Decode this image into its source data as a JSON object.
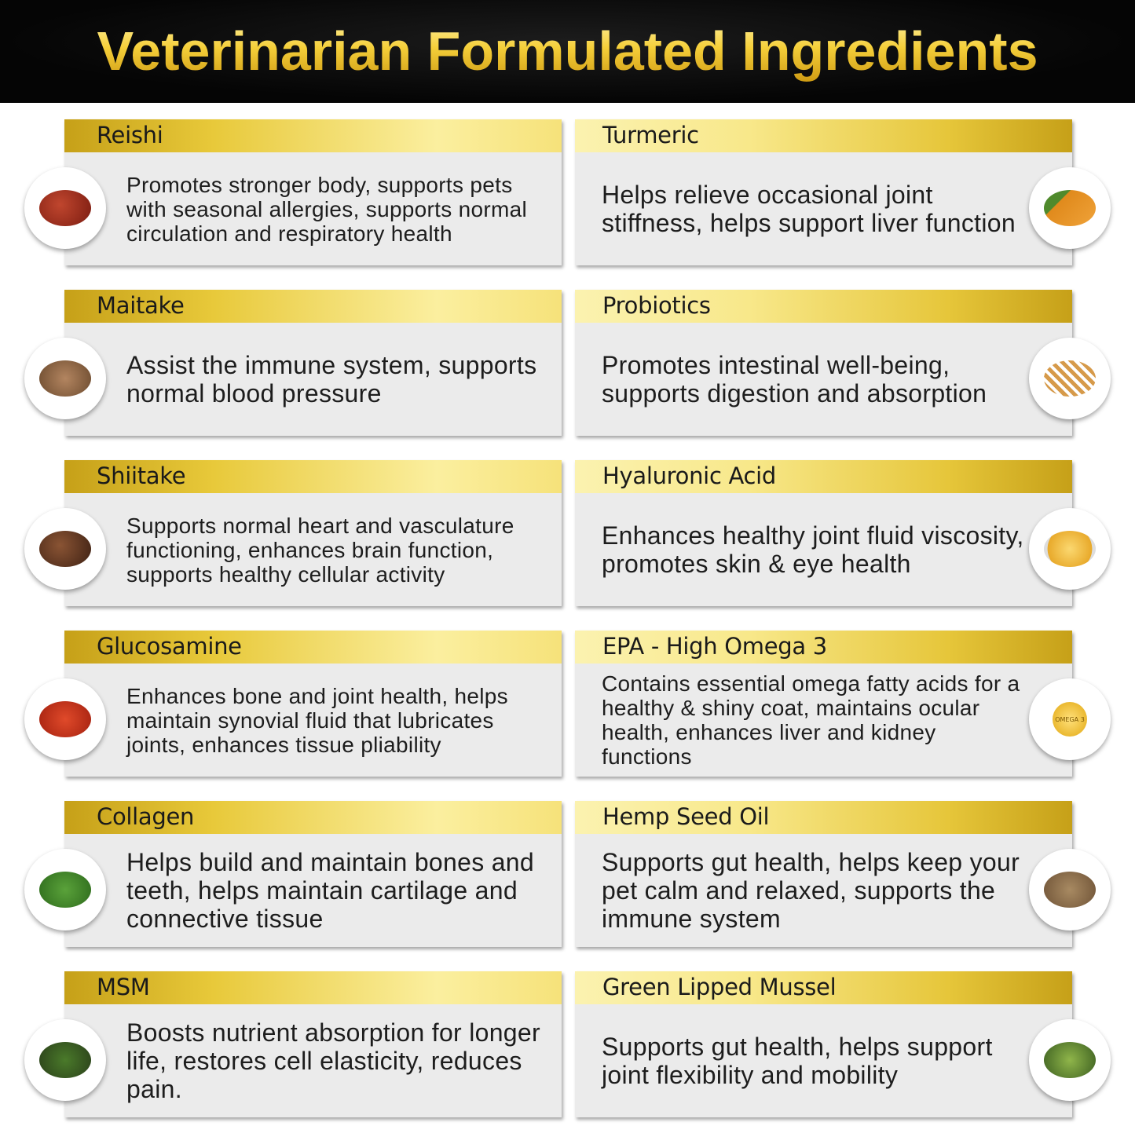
{
  "title": "Veterinarian Formulated Ingredients",
  "colors": {
    "banner": "#0a0a0a",
    "gold": "#d4ae26",
    "light_gold": "#fbef9f",
    "card": "#ebebeb"
  },
  "ingredients": [
    {
      "name": "Reishi",
      "description": "Promotes stronger body, supports pets with seasonal allergies, supports normal circulation and respiratory health",
      "icon": "reishi-mushroom-icon"
    },
    {
      "name": "Turmeric",
      "description": "Helps relieve occasional joint stiffness, helps support liver function",
      "icon": "turmeric-root-icon"
    },
    {
      "name": "Maitake",
      "description": "Assist the immune system, supports normal blood pressure",
      "icon": "maitake-mushroom-icon"
    },
    {
      "name": "Probiotics",
      "description": "Promotes intestinal well-being, supports digestion and absorption",
      "icon": "probiotics-bacteria-icon"
    },
    {
      "name": "Shiitake",
      "description": "Supports normal heart and vasculature functioning, enhances brain function, supports healthy cellular activity",
      "icon": "shiitake-mushroom-icon"
    },
    {
      "name": "Hyaluronic Acid",
      "description": "Enhances healthy joint fluid viscosity, promotes skin & eye health",
      "icon": "oil-bowl-icon"
    },
    {
      "name": "Glucosamine",
      "description": "Enhances bone and joint health, helps maintain synovial fluid that lubricates joints, enhances tissue pliability",
      "icon": "lobster-icon"
    },
    {
      "name": "EPA - High Omega 3",
      "description": "Contains essential omega fatty acids for a healthy & shiny coat, maintains ocular health, enhances liver and kidney functions",
      "icon": "omega-3-icon",
      "icon_text": "OMEGA 3"
    },
    {
      "name": "Collagen",
      "description": "Helps build and maintain bones and teeth, helps maintain cartilage and connective tissue",
      "icon": "leafy-greens-icon"
    },
    {
      "name": "Hemp Seed Oil",
      "description": "Supports gut health, helps keep your pet calm and relaxed, supports the immune system",
      "icon": "hemp-seeds-icon"
    },
    {
      "name": "MSM",
      "description": "Boosts nutrient absorption for longer life, restores cell elasticity, reduces pain.",
      "icon": "herbs-mortar-icon"
    },
    {
      "name": "Green Lipped Mussel",
      "description": "Supports gut health, helps support joint flexibility and mobility",
      "icon": "mussel-icon"
    }
  ]
}
